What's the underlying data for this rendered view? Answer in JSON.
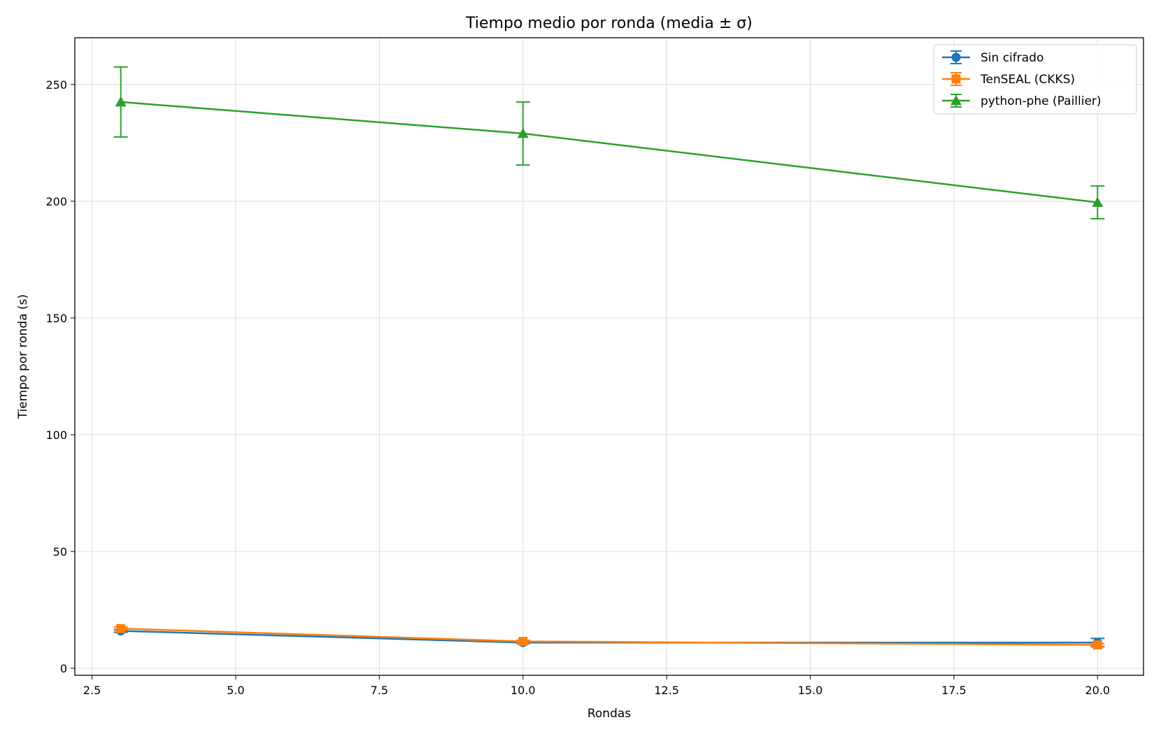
{
  "chart_data": {
    "type": "line",
    "title": "Tiempo medio por ronda (media ± σ)",
    "xlabel": "Rondas",
    "ylabel": "Tiempo por ronda (s)",
    "xlim": [
      2.2,
      20.8
    ],
    "ylim": [
      -3,
      270
    ],
    "xticks": [
      2.5,
      5.0,
      7.5,
      10.0,
      12.5,
      15.0,
      17.5,
      20.0
    ],
    "xtick_labels": [
      "2.5",
      "5.0",
      "7.5",
      "10.0",
      "12.5",
      "15.0",
      "17.5",
      "20.0"
    ],
    "yticks": [
      0,
      50,
      100,
      150,
      200,
      250
    ],
    "ytick_labels": [
      "0",
      "50",
      "100",
      "150",
      "200",
      "250"
    ],
    "grid": true,
    "legend_position": "top-right",
    "series": [
      {
        "name": "Sin cifrado",
        "color": "#1f77b4",
        "marker": "circle",
        "x": [
          3,
          10,
          20
        ],
        "y": [
          16.0,
          11.0,
          11.0
        ],
        "yerr": [
          0.6,
          0.4,
          1.8
        ]
      },
      {
        "name": "TenSEAL (CKKS)",
        "color": "#ff7f0e",
        "marker": "square",
        "x": [
          3,
          10,
          20
        ],
        "y": [
          17.0,
          11.5,
          10.0
        ],
        "yerr": [
          0.7,
          0.5,
          0.6
        ]
      },
      {
        "name": "python-phe (Paillier)",
        "color": "#2ca02c",
        "marker": "triangle",
        "x": [
          3,
          10,
          20
        ],
        "y": [
          242.5,
          229.0,
          199.5
        ],
        "yerr": [
          15.0,
          13.5,
          7.0
        ]
      }
    ]
  }
}
